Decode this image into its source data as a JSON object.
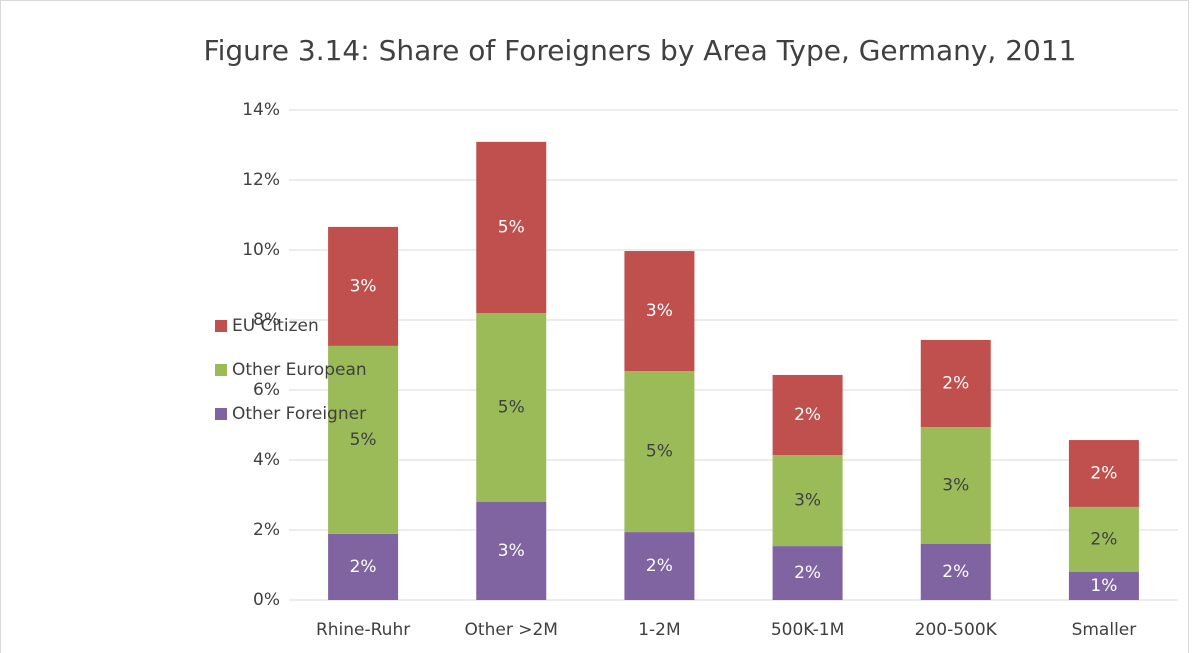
{
  "chart_data": {
    "type": "stacked_bar",
    "title": "Figure 3.14: Share of Foreigners by Area Type, Germany, 2011",
    "categories": [
      "Rhine-Ruhr",
      "Other >2M",
      "1-2M",
      "500K-1M",
      "200-500K",
      "Smaller"
    ],
    "series": [
      {
        "name": "Other Foreigner",
        "color": "#8064a2",
        "label_color": "#ffffff",
        "values": [
          1.89,
          2.8,
          1.94,
          1.54,
          1.6,
          0.8
        ],
        "value_labels": [
          "2%",
          "3%",
          "2%",
          "2%",
          "2%",
          "1%"
        ]
      },
      {
        "name": "Other European",
        "color": "#9bbb59",
        "label_color": "#404040",
        "values": [
          5.37,
          5.4,
          4.6,
          2.6,
          3.34,
          1.86
        ],
        "value_labels": [
          "5%",
          "5%",
          "5%",
          "3%",
          "3%",
          "2%"
        ]
      },
      {
        "name": "EU Citizen",
        "color": "#c0504d",
        "label_color": "#ffffff",
        "values": [
          3.4,
          4.89,
          3.43,
          2.29,
          2.49,
          1.91
        ],
        "value_labels": [
          "3%",
          "5%",
          "3%",
          "2%",
          "2%",
          "2%"
        ]
      }
    ],
    "ylim": [
      0,
      14
    ],
    "yticks": [
      {
        "value": 0,
        "label": "0%"
      },
      {
        "value": 2,
        "label": "2%"
      },
      {
        "value": 4,
        "label": "4%"
      },
      {
        "value": 6,
        "label": "6%"
      },
      {
        "value": 8,
        "label": "8%"
      },
      {
        "value": 10,
        "label": "10%"
      },
      {
        "value": 12,
        "label": "12%"
      },
      {
        "value": 14,
        "label": "14%"
      }
    ],
    "grid": true,
    "legend": "left"
  }
}
